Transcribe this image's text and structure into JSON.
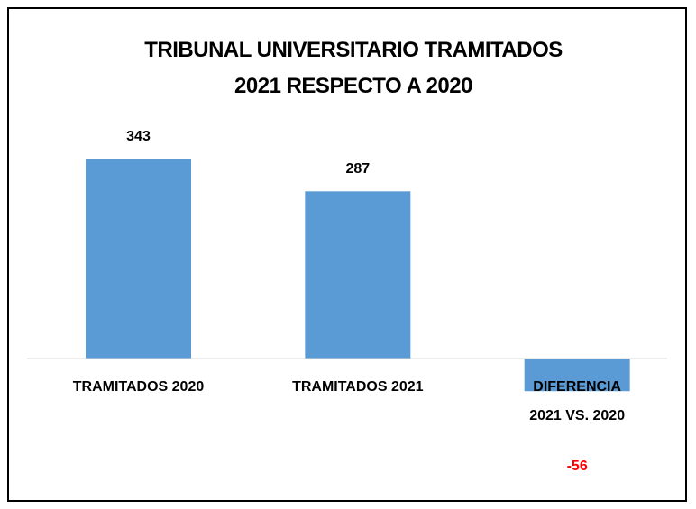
{
  "chart_data": {
    "type": "bar",
    "title": "TRIBUNAL UNIVERSITARIO TRAMITADOS\n2021 RESPECTO A 2020",
    "categories": [
      "TRAMITADOS 2020",
      "TRAMITADOS 2021",
      "DIFERENCIA\n2021 VS. 2020"
    ],
    "values": [
      343,
      287,
      -56
    ],
    "color": "#5b9bd5",
    "negative_label_color": "#ff0000",
    "ylim": [
      -100,
      400
    ]
  }
}
